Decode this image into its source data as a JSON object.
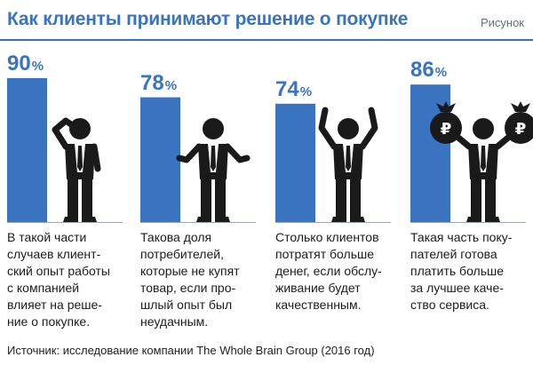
{
  "header": {
    "title": "Как клиенты принимают решение о покупке",
    "figure_label": "Рисунок"
  },
  "chart_data": {
    "type": "bar",
    "categories": [
      "В такой части случаев клиентский опыт работы с компанией влияет на решение о покупке.",
      "Такова доля потребителей, которые не купят товар, если прошлый опыт был неудачным.",
      "Столько клиентов потратят больше денег, если обслуживание будет качественным.",
      "Такая часть покупателей готова платить больше за лучшее качество сервиса."
    ],
    "values": [
      90,
      78,
      74,
      86
    ],
    "ylim": [
      0,
      100
    ],
    "value_suffix": "%",
    "bar_color": "#3a73bf",
    "captions": [
      "В такой части\nслучаев клиент-\nский опыт работы\nс компанией\nвлияет на реше-\nние о покупке.",
      "Такова доля\nпотребителей,\nкоторые не купят\nтовар, если про-\nшлый опыт был\nнеудачным.",
      "Столько клиентов\nпотратят больше\nденег, если обслу-\nживание будет\nкачественным.",
      "Такая часть поку-\nпателей готова\nплатить больше\nза лучшее каче-\nство сервиса."
    ],
    "figures": [
      "person-thinking-icon",
      "person-sad-icon",
      "person-happy-icon",
      "person-money-bags-icon"
    ],
    "money_symbol": "₽"
  },
  "footer": {
    "source": "Источник: исследование компании The Whole Brain Group (2016 год)"
  }
}
